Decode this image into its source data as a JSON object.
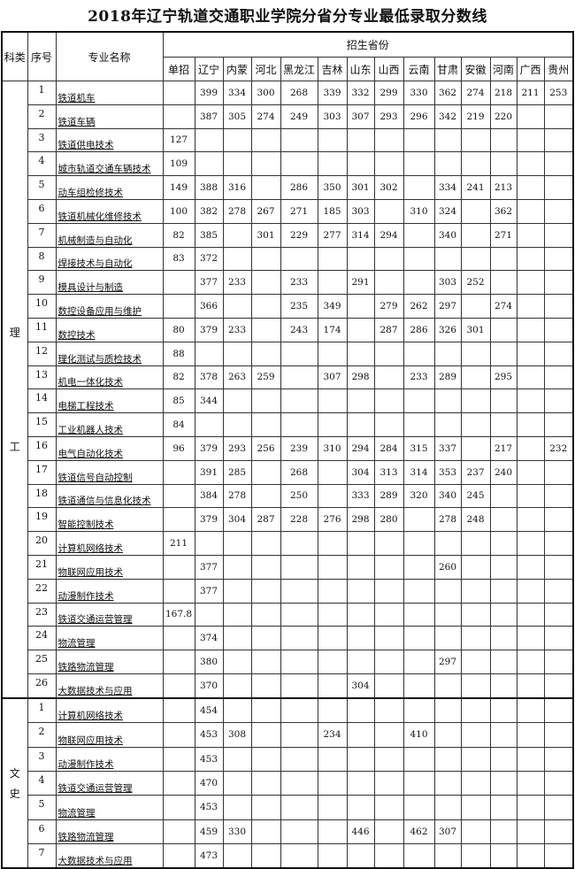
{
  "title": "2018年辽宁轨道交通职业学院分省分专业最低录取分数线",
  "headers": {
    "category": "科类",
    "index": "序号",
    "major": "专业名称",
    "provinces_group": "招生省份",
    "columns": [
      "单招",
      "辽宁",
      "内蒙",
      "河北",
      "黑龙江",
      "吉林",
      "山东",
      "山西",
      "云南",
      "甘肃",
      "安徽",
      "河南",
      "广西",
      "贵州"
    ]
  },
  "sections": [
    {
      "category_chars": [
        "理",
        "工"
      ],
      "rows": [
        {
          "no": "1",
          "name": "铁道机车",
          "scores": [
            "",
            "399",
            "334",
            "300",
            "268",
            "339",
            "332",
            "299",
            "330",
            "362",
            "274",
            "218",
            "211",
            "253"
          ]
        },
        {
          "no": "2",
          "name": "铁道车辆",
          "scores": [
            "",
            "387",
            "305",
            "274",
            "249",
            "303",
            "307",
            "293",
            "296",
            "342",
            "219",
            "220",
            "",
            ""
          ]
        },
        {
          "no": "3",
          "name": "铁道供电技术",
          "scores": [
            "127",
            "",
            "",
            "",
            "",
            "",
            "",
            "",
            "",
            "",
            "",
            "",
            "",
            ""
          ]
        },
        {
          "no": "4",
          "name": "城市轨道交通车辆技术",
          "scores": [
            "109",
            "",
            "",
            "",
            "",
            "",
            "",
            "",
            "",
            "",
            "",
            "",
            "",
            ""
          ]
        },
        {
          "no": "5",
          "name": "动车组检修技术",
          "scores": [
            "149",
            "388",
            "316",
            "",
            "286",
            "350",
            "301",
            "302",
            "",
            "334",
            "241",
            "213",
            "",
            ""
          ]
        },
        {
          "no": "6",
          "name": "铁道机械化维修技术",
          "scores": [
            "100",
            "382",
            "278",
            "267",
            "271",
            "185",
            "303",
            "",
            "310",
            "324",
            "",
            "362",
            "",
            ""
          ]
        },
        {
          "no": "7",
          "name": "机械制造与自动化",
          "scores": [
            "82",
            "385",
            "",
            "301",
            "229",
            "277",
            "314",
            "294",
            "",
            "340",
            "",
            "271",
            "",
            ""
          ]
        },
        {
          "no": "8",
          "name": "焊接技术与自动化",
          "scores": [
            "83",
            "372",
            "",
            "",
            "",
            "",
            "",
            "",
            "",
            "",
            "",
            "",
            "",
            ""
          ]
        },
        {
          "no": "9",
          "name": "模具设计与制造",
          "scores": [
            "",
            "377",
            "233",
            "",
            "233",
            "",
            "291",
            "",
            "",
            "303",
            "252",
            "",
            "",
            ""
          ]
        },
        {
          "no": "10",
          "name": "数控设备应用与维护",
          "scores": [
            "",
            "366",
            "",
            "",
            "235",
            "349",
            "",
            "279",
            "262",
            "297",
            "",
            "274",
            "",
            ""
          ]
        },
        {
          "no": "11",
          "name": "数控技术",
          "scores": [
            "80",
            "379",
            "233",
            "",
            "243",
            "174",
            "",
            "287",
            "286",
            "326",
            "301",
            "",
            "",
            ""
          ]
        },
        {
          "no": "12",
          "name": "理化测试与质检技术",
          "scores": [
            "88",
            "",
            "",
            "",
            "",
            "",
            "",
            "",
            "",
            "",
            "",
            "",
            "",
            ""
          ]
        },
        {
          "no": "13",
          "name": "机电一体化技术",
          "scores": [
            "82",
            "378",
            "263",
            "259",
            "",
            "307",
            "298",
            "",
            "233",
            "289",
            "",
            "295",
            "",
            ""
          ]
        },
        {
          "no": "14",
          "name": "电梯工程技术",
          "scores": [
            "85",
            "344",
            "",
            "",
            "",
            "",
            "",
            "",
            "",
            "",
            "",
            "",
            "",
            ""
          ]
        },
        {
          "no": "15",
          "name": "工业机器人技术",
          "scores": [
            "84",
            "",
            "",
            "",
            "",
            "",
            "",
            "",
            "",
            "",
            "",
            "",
            "",
            ""
          ]
        },
        {
          "no": "16",
          "name": "电气自动化技术",
          "scores": [
            "96",
            "379",
            "293",
            "256",
            "239",
            "310",
            "294",
            "284",
            "315",
            "337",
            "",
            "217",
            "",
            "232"
          ]
        },
        {
          "no": "17",
          "name": "铁道信号自动控制",
          "scores": [
            "",
            "391",
            "285",
            "",
            "268",
            "",
            "304",
            "313",
            "314",
            "353",
            "237",
            "240",
            "",
            ""
          ]
        },
        {
          "no": "18",
          "name": "铁道通信与信息化技术",
          "scores": [
            "",
            "384",
            "278",
            "",
            "250",
            "",
            "333",
            "289",
            "320",
            "340",
            "245",
            "",
            "",
            ""
          ]
        },
        {
          "no": "19",
          "name": "智能控制技术",
          "scores": [
            "",
            "379",
            "304",
            "287",
            "228",
            "276",
            "298",
            "280",
            "",
            "278",
            "248",
            "",
            "",
            ""
          ]
        },
        {
          "no": "20",
          "name": "计算机网络技术",
          "scores": [
            "211",
            "",
            "",
            "",
            "",
            "",
            "",
            "",
            "",
            "",
            "",
            "",
            "",
            ""
          ]
        },
        {
          "no": "21",
          "name": "物联网应用技术",
          "scores": [
            "",
            "377",
            "",
            "",
            "",
            "",
            "",
            "",
            "",
            "260",
            "",
            "",
            "",
            ""
          ]
        },
        {
          "no": "22",
          "name": "动漫制作技术",
          "scores": [
            "",
            "377",
            "",
            "",
            "",
            "",
            "",
            "",
            "",
            "",
            "",
            "",
            "",
            ""
          ]
        },
        {
          "no": "23",
          "name": "铁道交通运营管理",
          "scores": [
            "167.8",
            "",
            "",
            "",
            "",
            "",
            "",
            "",
            "",
            "",
            "",
            "",
            "",
            ""
          ]
        },
        {
          "no": "24",
          "name": "物流管理",
          "scores": [
            "",
            "374",
            "",
            "",
            "",
            "",
            "",
            "",
            "",
            "",
            "",
            "",
            "",
            ""
          ]
        },
        {
          "no": "25",
          "name": "铁路物流管理",
          "scores": [
            "",
            "380",
            "",
            "",
            "",
            "",
            "",
            "",
            "",
            "297",
            "",
            "",
            "",
            ""
          ]
        },
        {
          "no": "26",
          "name": "大数据技术与应用",
          "scores": [
            "",
            "370",
            "",
            "",
            "",
            "",
            "304",
            "",
            "",
            "",
            "",
            "",
            "",
            ""
          ]
        }
      ]
    },
    {
      "category_chars": [
        "文",
        "史"
      ],
      "rows": [
        {
          "no": "1",
          "name": "计算机网络技术",
          "scores": [
            "",
            "454",
            "",
            "",
            "",
            "",
            "",
            "",
            "",
            "",
            "",
            "",
            "",
            ""
          ]
        },
        {
          "no": "2",
          "name": "物联网应用技术",
          "scores": [
            "",
            "453",
            "308",
            "",
            "",
            "234",
            "",
            "",
            "410",
            "",
            "",
            "",
            "",
            ""
          ]
        },
        {
          "no": "3",
          "name": "动漫制作技术",
          "scores": [
            "",
            "453",
            "",
            "",
            "",
            "",
            "",
            "",
            "",
            "",
            "",
            "",
            "",
            ""
          ]
        },
        {
          "no": "4",
          "name": "铁道交通运营管理",
          "scores": [
            "",
            "470",
            "",
            "",
            "",
            "",
            "",
            "",
            "",
            "",
            "",
            "",
            "",
            ""
          ]
        },
        {
          "no": "5",
          "name": "物流管理",
          "scores": [
            "",
            "453",
            "",
            "",
            "",
            "",
            "",
            "",
            "",
            "",
            "",
            "",
            "",
            ""
          ]
        },
        {
          "no": "6",
          "name": "铁路物流管理",
          "scores": [
            "",
            "459",
            "330",
            "",
            "",
            "",
            "446",
            "",
            "462",
            "307",
            "",
            "",
            "",
            ""
          ]
        },
        {
          "no": "7",
          "name": "大数据技术与应用",
          "scores": [
            "",
            "473",
            "",
            "",
            "",
            "",
            "",
            "",
            "",
            "",
            "",
            "",
            "",
            ""
          ]
        }
      ]
    }
  ]
}
